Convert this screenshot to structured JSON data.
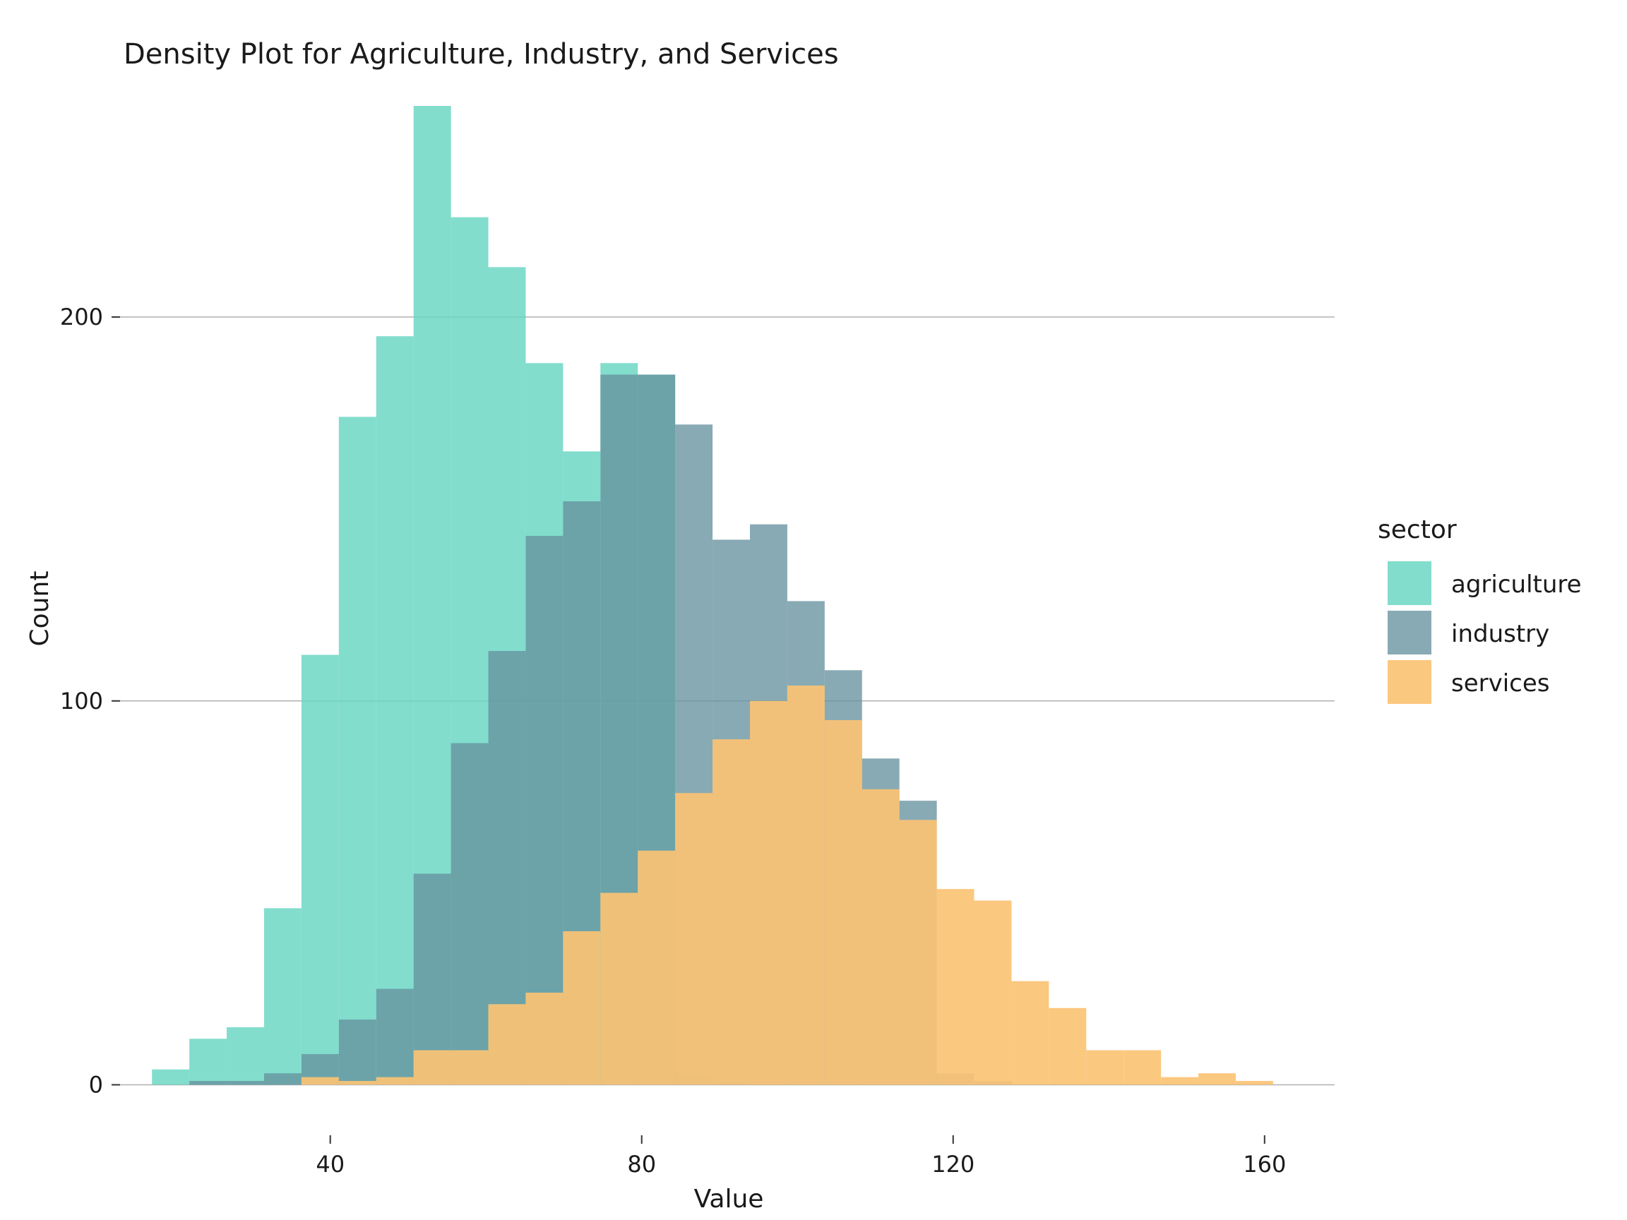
{
  "chart_data": {
    "type": "histogram",
    "title": "Density Plot for Agriculture, Industry, and Services",
    "xlabel": "Value",
    "ylabel": "Count",
    "xlim": [
      13,
      169
    ],
    "ylim": [
      -8,
      255
    ],
    "x_ticks": [
      40,
      80,
      120,
      160
    ],
    "y_ticks": [
      0,
      100,
      200
    ],
    "bin_width": 4.8,
    "grid": "horizontal major",
    "legend": {
      "title": "sector",
      "position": "right"
    },
    "series": [
      {
        "name": "agriculture",
        "color": "#66d6c2",
        "opacity": 0.82,
        "bins": [
          {
            "x0": 17.1,
            "value": 4
          },
          {
            "x0": 21.9,
            "value": 12
          },
          {
            "x0": 26.7,
            "value": 15
          },
          {
            "x0": 31.5,
            "value": 46
          },
          {
            "x0": 36.3,
            "value": 112
          },
          {
            "x0": 41.1,
            "value": 174
          },
          {
            "x0": 45.9,
            "value": 195
          },
          {
            "x0": 50.7,
            "value": 255
          },
          {
            "x0": 55.5,
            "value": 226
          },
          {
            "x0": 60.3,
            "value": 213
          },
          {
            "x0": 65.1,
            "value": 188
          },
          {
            "x0": 69.9,
            "value": 165
          },
          {
            "x0": 74.7,
            "value": 188
          },
          {
            "x0": 79.5,
            "value": 185
          },
          {
            "x0": 84.3,
            "value": 3
          },
          {
            "x0": 89.1,
            "value": 1
          }
        ]
      },
      {
        "name": "industry",
        "color": "#66929f",
        "opacity": 0.78,
        "bins": [
          {
            "x0": 21.9,
            "value": 1
          },
          {
            "x0": 26.7,
            "value": 1
          },
          {
            "x0": 31.5,
            "value": 3
          },
          {
            "x0": 36.3,
            "value": 8
          },
          {
            "x0": 41.1,
            "value": 17
          },
          {
            "x0": 45.9,
            "value": 25
          },
          {
            "x0": 50.7,
            "value": 55
          },
          {
            "x0": 55.5,
            "value": 89
          },
          {
            "x0": 60.3,
            "value": 113
          },
          {
            "x0": 65.1,
            "value": 143
          },
          {
            "x0": 69.9,
            "value": 152
          },
          {
            "x0": 74.7,
            "value": 185
          },
          {
            "x0": 79.5,
            "value": 185
          },
          {
            "x0": 84.3,
            "value": 172
          },
          {
            "x0": 89.1,
            "value": 142
          },
          {
            "x0": 93.9,
            "value": 146
          },
          {
            "x0": 98.7,
            "value": 126
          },
          {
            "x0": 103.5,
            "value": 108
          },
          {
            "x0": 108.3,
            "value": 85
          },
          {
            "x0": 113.1,
            "value": 74
          },
          {
            "x0": 117.9,
            "value": 3
          },
          {
            "x0": 122.7,
            "value": 1
          }
        ]
      },
      {
        "name": "services",
        "color": "#fbc374",
        "opacity": 0.92,
        "bins": [
          {
            "x0": 36.3,
            "value": 2
          },
          {
            "x0": 41.1,
            "value": 1
          },
          {
            "x0": 45.9,
            "value": 2
          },
          {
            "x0": 50.7,
            "value": 9
          },
          {
            "x0": 55.5,
            "value": 9
          },
          {
            "x0": 60.3,
            "value": 21
          },
          {
            "x0": 65.1,
            "value": 24
          },
          {
            "x0": 69.9,
            "value": 40
          },
          {
            "x0": 74.7,
            "value": 50
          },
          {
            "x0": 79.5,
            "value": 61
          },
          {
            "x0": 84.3,
            "value": 76
          },
          {
            "x0": 89.1,
            "value": 90
          },
          {
            "x0": 93.9,
            "value": 100
          },
          {
            "x0": 98.7,
            "value": 104
          },
          {
            "x0": 103.5,
            "value": 95
          },
          {
            "x0": 108.3,
            "value": 77
          },
          {
            "x0": 113.1,
            "value": 69
          },
          {
            "x0": 117.9,
            "value": 51
          },
          {
            "x0": 122.7,
            "value": 48
          },
          {
            "x0": 127.5,
            "value": 27
          },
          {
            "x0": 132.3,
            "value": 20
          },
          {
            "x0": 137.1,
            "value": 9
          },
          {
            "x0": 141.9,
            "value": 9
          },
          {
            "x0": 146.7,
            "value": 2
          },
          {
            "x0": 151.5,
            "value": 3
          },
          {
            "x0": 156.3,
            "value": 1
          }
        ]
      }
    ]
  }
}
